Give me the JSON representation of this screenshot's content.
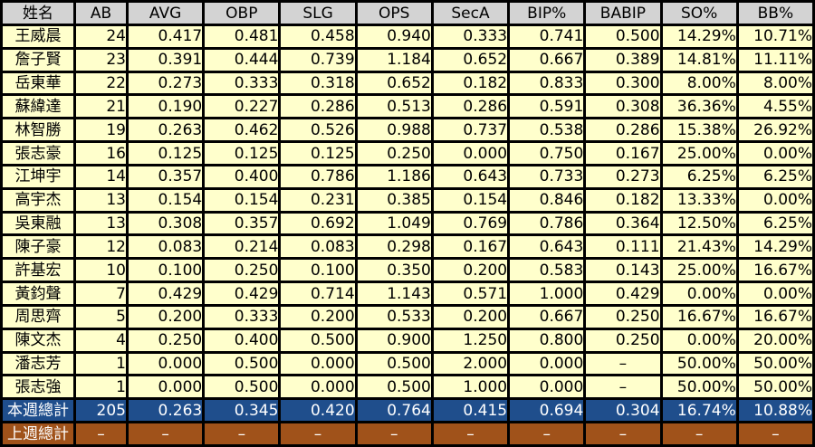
{
  "table": {
    "headers": [
      "姓名",
      "AB",
      "AVG",
      "OBP",
      "SLG",
      "OPS",
      "SecA",
      "BIP%",
      "BABIP",
      "SO%",
      "BB%"
    ],
    "rows": [
      [
        "王威晨",
        "24",
        "0.417",
        "0.481",
        "0.458",
        "0.940",
        "0.333",
        "0.741",
        "0.500",
        "14.29%",
        "10.71%"
      ],
      [
        "詹子賢",
        "23",
        "0.391",
        "0.444",
        "0.739",
        "1.184",
        "0.652",
        "0.667",
        "0.389",
        "14.81%",
        "11.11%"
      ],
      [
        "岳東華",
        "22",
        "0.273",
        "0.333",
        "0.318",
        "0.652",
        "0.182",
        "0.833",
        "0.300",
        "8.00%",
        "8.00%"
      ],
      [
        "蘇緯達",
        "21",
        "0.190",
        "0.227",
        "0.286",
        "0.513",
        "0.286",
        "0.591",
        "0.308",
        "36.36%",
        "4.55%"
      ],
      [
        "林智勝",
        "19",
        "0.263",
        "0.462",
        "0.526",
        "0.988",
        "0.737",
        "0.538",
        "0.286",
        "15.38%",
        "26.92%"
      ],
      [
        "張志豪",
        "16",
        "0.125",
        "0.125",
        "0.125",
        "0.250",
        "0.000",
        "0.750",
        "0.167",
        "25.00%",
        "0.00%"
      ],
      [
        "江坤宇",
        "14",
        "0.357",
        "0.400",
        "0.786",
        "1.186",
        "0.643",
        "0.733",
        "0.273",
        "6.25%",
        "6.25%"
      ],
      [
        "高宇杰",
        "13",
        "0.154",
        "0.154",
        "0.231",
        "0.385",
        "0.154",
        "0.846",
        "0.182",
        "13.33%",
        "0.00%"
      ],
      [
        "吳東融",
        "13",
        "0.308",
        "0.357",
        "0.692",
        "1.049",
        "0.769",
        "0.786",
        "0.364",
        "12.50%",
        "6.25%"
      ],
      [
        "陳子豪",
        "12",
        "0.083",
        "0.214",
        "0.083",
        "0.298",
        "0.167",
        "0.643",
        "0.111",
        "21.43%",
        "14.29%"
      ],
      [
        "許基宏",
        "10",
        "0.100",
        "0.250",
        "0.100",
        "0.350",
        "0.200",
        "0.583",
        "0.143",
        "25.00%",
        "16.67%"
      ],
      [
        "黃鈞聲",
        "7",
        "0.429",
        "0.429",
        "0.714",
        "1.143",
        "0.571",
        "1.000",
        "0.429",
        "0.00%",
        "0.00%"
      ],
      [
        "周思齊",
        "5",
        "0.200",
        "0.333",
        "0.200",
        "0.533",
        "0.200",
        "0.667",
        "0.250",
        "16.67%",
        "16.67%"
      ],
      [
        "陳文杰",
        "4",
        "0.250",
        "0.400",
        "0.500",
        "0.900",
        "1.250",
        "0.800",
        "0.250",
        "0.00%",
        "20.00%"
      ],
      [
        "潘志芳",
        "1",
        "0.000",
        "0.500",
        "0.000",
        "0.500",
        "2.000",
        "0.000",
        "–",
        "50.00%",
        "50.00%"
      ],
      [
        "張志強",
        "1",
        "0.000",
        "0.500",
        "0.000",
        "0.500",
        "1.000",
        "0.000",
        "–",
        "50.00%",
        "50.00%"
      ]
    ],
    "this_week": [
      "本週總計",
      "205",
      "0.263",
      "0.345",
      "0.420",
      "0.764",
      "0.415",
      "0.694",
      "0.304",
      "16.74%",
      "10.88%"
    ],
    "last_week": [
      "上週總計",
      "–",
      "–",
      "–",
      "–",
      "–",
      "–",
      "–",
      "–",
      "–",
      "–"
    ]
  },
  "colors": {
    "header_bg": "#d3d3d3",
    "row_bg": "#ffffcc",
    "this_week_bg": "#1f4e8c",
    "last_week_bg": "#a0521a",
    "grid": "#000000"
  }
}
